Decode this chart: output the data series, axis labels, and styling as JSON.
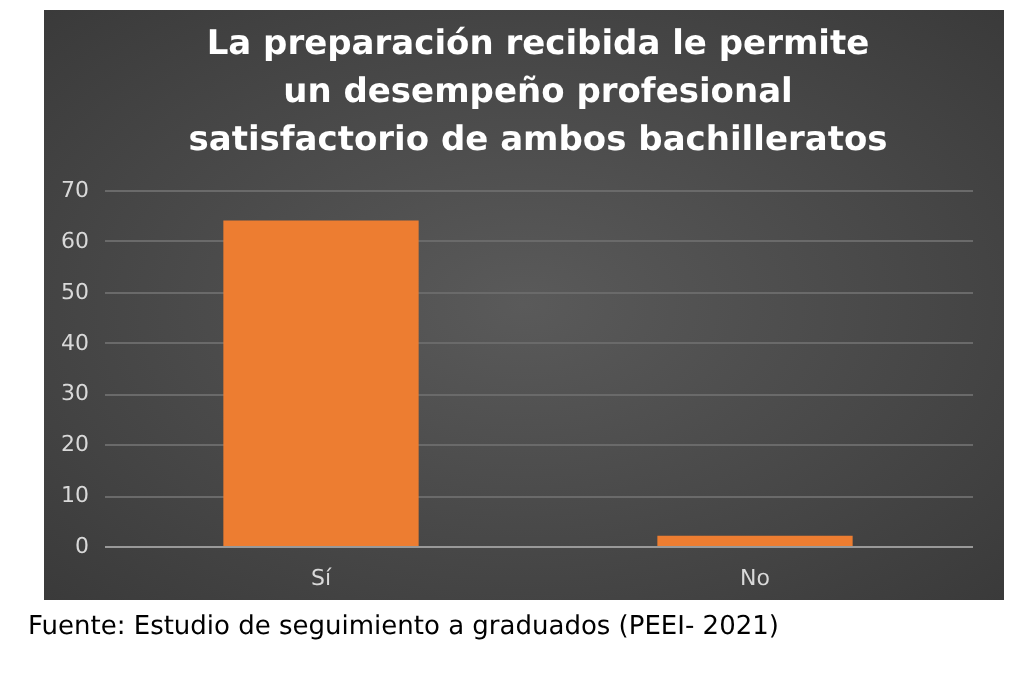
{
  "chart_data": {
    "type": "bar",
    "title": "La preparación recibida le permite un desempeño profesional satisfactorio de ambos bachilleratos",
    "categories": [
      "Sí",
      "No"
    ],
    "values": [
      64,
      2
    ],
    "color": "#ed7d31",
    "ylim": [
      0,
      70
    ],
    "yticks": [
      0,
      10,
      20,
      30,
      40,
      50,
      60,
      70
    ],
    "grid": "y",
    "annotations": [
      "Fuente: Estudio de seguimiento a graduados (PEEI- 2021)"
    ]
  }
}
